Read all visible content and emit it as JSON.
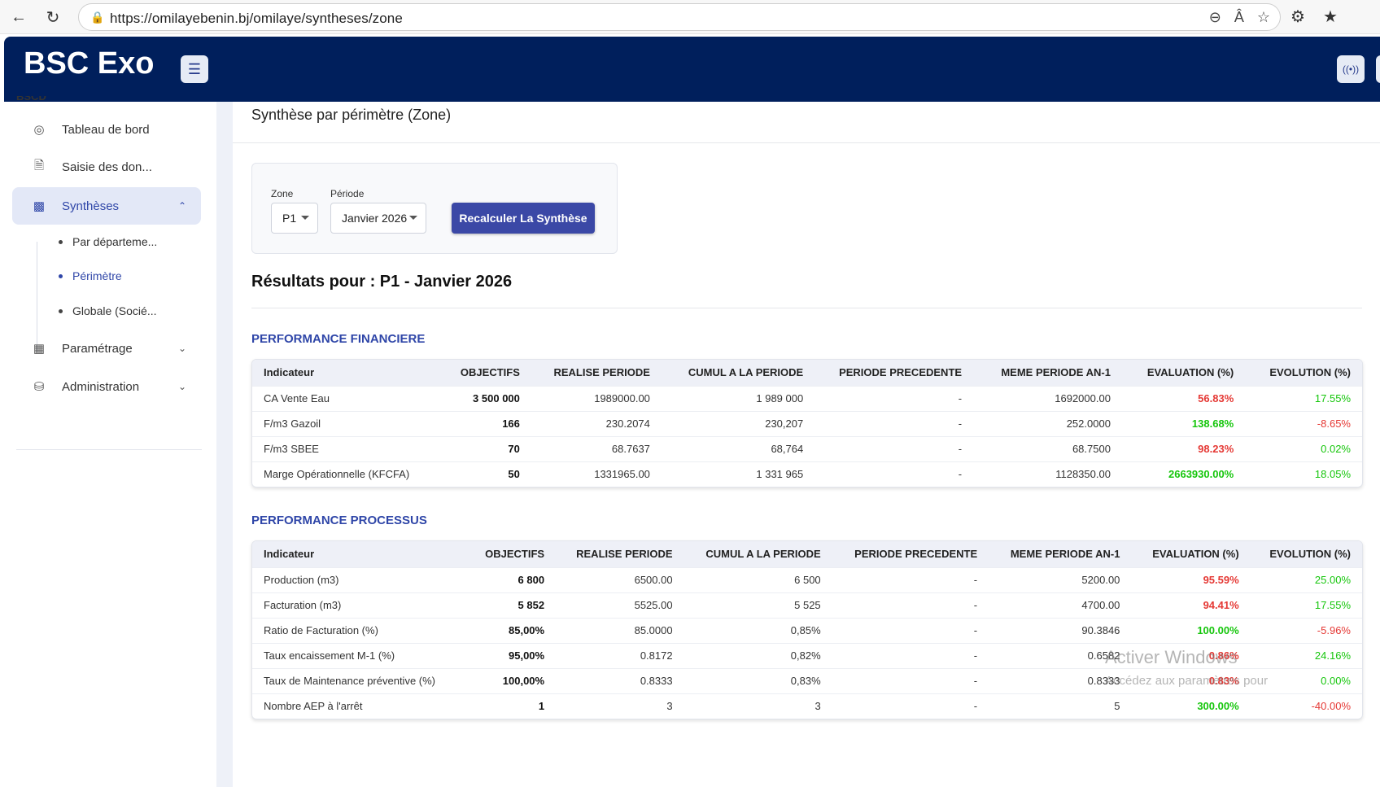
{
  "browser": {
    "url": "https://omilayebenin.bj/omilaye/syntheses/zone",
    "nav_back_icon": "arrow-left-icon",
    "nav_reload_icon": "reload-icon"
  },
  "header": {
    "brand": "BSC Exo",
    "accent": "#001f5c"
  },
  "sidebar": {
    "cut_label": "BSCD",
    "items": [
      {
        "label": "Tableau de bord",
        "icon": "gauge-icon"
      },
      {
        "label": "Saisie des don...",
        "icon": "document-icon"
      },
      {
        "label": "Synthèses",
        "icon": "bar-chart-icon"
      },
      {
        "label": "Paramétrage",
        "icon": "building-icon"
      },
      {
        "label": "Administration",
        "icon": "database-icon"
      }
    ],
    "sub_items": [
      {
        "label": "Par départeme..."
      },
      {
        "label": "Périmètre"
      },
      {
        "label": "Globale (Socié..."
      }
    ]
  },
  "main": {
    "page_title": "Synthèse par périmètre (Zone)",
    "filters": {
      "zone_label": "Zone",
      "zone_value": "P1",
      "periode_label": "Période",
      "periode_value": "Janvier 2026",
      "recalc_label": "Recalculer La Synthèse"
    },
    "results_title": "Résultats pour : P1 - Janvier 2026"
  },
  "financiere": {
    "title": "PERFORMANCE FINANCIERE",
    "headers": [
      "Indicateur",
      "OBJECTIFS",
      "REALISE PERIODE",
      "CUMUL A LA PERIODE",
      "PERIODE PRECEDENTE",
      "MEME PERIODE AN-1",
      "EVALUATION (%)",
      "EVOLUTION (%)"
    ],
    "rows": [
      [
        "CA Vente Eau",
        "3 500 000",
        "1989000.00",
        "1 989 000",
        "-",
        "1692000.00",
        "56.83%",
        "17.55%"
      ],
      [
        "F/m3 Gazoil",
        "166",
        "230.2074",
        "230,207",
        "-",
        "252.0000",
        "138.68%",
        "-8.65%"
      ],
      [
        "F/m3 SBEE",
        "70",
        "68.7637",
        "68,764",
        "-",
        "68.7500",
        "98.23%",
        "0.02%"
      ],
      [
        "Marge Opérationnelle (KFCFA)",
        "50",
        "1331965.00",
        "1 331 965",
        "-",
        "1128350.00",
        "2663930.00%",
        "18.05%"
      ]
    ]
  },
  "processus": {
    "title": "PERFORMANCE PROCESSUS",
    "headers": [
      "Indicateur",
      "OBJECTIFS",
      "REALISE PERIODE",
      "CUMUL A LA PERIODE",
      "PERIODE PRECEDENTE",
      "MEME PERIODE AN-1",
      "EVALUATION (%)",
      "EVOLUTION (%)"
    ],
    "rows": [
      [
        "Production (m3)",
        "6 800",
        "6500.00",
        "6 500",
        "-",
        "5200.00",
        "95.59%",
        "25.00%"
      ],
      [
        "Facturation (m3)",
        "5 852",
        "5525.00",
        "5 525",
        "-",
        "4700.00",
        "94.41%",
        "17.55%"
      ],
      [
        "Ratio de Facturation (%)",
        "85,00%",
        "85.0000",
        "0,85%",
        "-",
        "90.3846",
        "100.00%",
        "-5.96%"
      ],
      [
        "Taux encaissement M-1 (%)",
        "95,00%",
        "0.8172",
        "0,82%",
        "-",
        "0.6582",
        "0.86%",
        "24.16%"
      ],
      [
        "Taux de Maintenance préventive (%)",
        "100,00%",
        "0.8333",
        "0,83%",
        "-",
        "0.8333",
        "0.83%",
        "0.00%"
      ],
      [
        "Nombre AEP à l'arrêt",
        "1",
        "3",
        "3",
        "-",
        "5",
        "300.00%",
        "-40.00%"
      ]
    ]
  },
  "watermark": {
    "line1": "Activer Windows",
    "line2": "Accédez aux paramètres pour"
  }
}
